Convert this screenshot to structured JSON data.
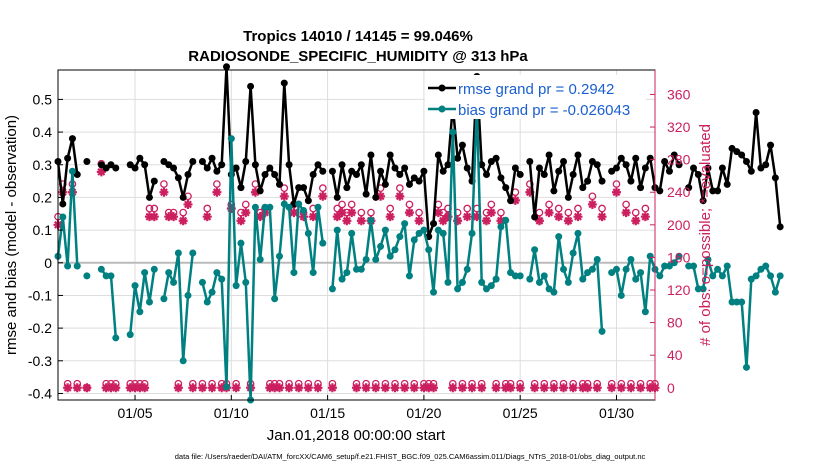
{
  "chart_data": {
    "type": "line",
    "title_line1": "Tropics 14010 / 14145 = 99.046%",
    "title_line2": "RADIOSONDE_SPECIFIC_HUMIDITY @ 313 hPa",
    "xlabel": "Jan.01,2018 00:00:00 start",
    "ylabel_left": "rmse and bias (model - observation)",
    "ylabel_right": "# of obs: o=possible; *=evaluated",
    "footnote": "data file: /Users/raeder/DAI/ATM_forcXX/CAM6_setup/f.e21.FHIST_BGC.f09_025.CAM6assim.011/Diags_NTrS_2018-01/obs_diag_output.nc",
    "xlim": [
      1.0,
      32.0
    ],
    "ylim_left": [
      -0.42,
      0.59
    ],
    "ylim_right": [
      -15,
      390
    ],
    "x_ticks": [
      {
        "value": 5,
        "label": "01/05"
      },
      {
        "value": 10,
        "label": "01/10"
      },
      {
        "value": 15,
        "label": "01/15"
      },
      {
        "value": 20,
        "label": "01/20"
      },
      {
        "value": 25,
        "label": "01/25"
      },
      {
        "value": 30,
        "label": "01/30"
      }
    ],
    "y_left_ticks": [
      {
        "value": 0.5,
        "label": "0.5"
      },
      {
        "value": 0.4,
        "label": "0.4"
      },
      {
        "value": 0.3,
        "label": "0.3"
      },
      {
        "value": 0.2,
        "label": "0.2"
      },
      {
        "value": 0.1,
        "label": "0.1"
      },
      {
        "value": 0,
        "label": "0"
      },
      {
        "value": -0.1,
        "label": "-0.1"
      },
      {
        "value": -0.2,
        "label": "-0.2"
      },
      {
        "value": -0.3,
        "label": "-0.3"
      },
      {
        "value": -0.4,
        "label": "-0.4"
      }
    ],
    "y_right_ticks": [
      {
        "value": 360,
        "label": "360"
      },
      {
        "value": 320,
        "label": "320"
      },
      {
        "value": 280,
        "label": "280"
      },
      {
        "value": 240,
        "label": "240"
      },
      {
        "value": 200,
        "label": "200"
      },
      {
        "value": 160,
        "label": "160"
      },
      {
        "value": 120,
        "label": "120"
      },
      {
        "value": 80,
        "label": "80"
      },
      {
        "value": 40,
        "label": "40"
      },
      {
        "value": 0,
        "label": "0"
      }
    ],
    "legend_position": "top-right",
    "x_step_days": 0.25,
    "x_start": 1.0,
    "series": [
      {
        "name": "rmse",
        "legend": "rmse grand pr = 0.2942",
        "color": "#000000",
        "axis": "left",
        "values": [
          0.31,
          0.18,
          0.32,
          0.38,
          0.27,
          null,
          0.31,
          null,
          null,
          0.3,
          0.29,
          0.3,
          0.29,
          null,
          null,
          0.3,
          0.29,
          0.32,
          0.3,
          0.2,
          0.25,
          null,
          0.31,
          0.3,
          0.29,
          0.26,
          0.2,
          0.27,
          0.31,
          null,
          0.31,
          0.29,
          0.32,
          0.28,
          0.3,
          0.6,
          0.27,
          0.29,
          0.23,
          0.31,
          0.54,
          0.3,
          0.22,
          0.27,
          0.29,
          0.27,
          0.24,
          0.55,
          0.3,
          0.18,
          0.23,
          0.23,
          0.19,
          0.27,
          0.3,
          0.28,
          null,
          0.28,
          0.2,
          0.3,
          0.23,
          0.28,
          0.27,
          0.3,
          0.21,
          0.33,
          0.2,
          0.28,
          0.24,
          0.33,
          0.29,
          0.27,
          0.29,
          0.24,
          0.26,
          0.25,
          0.28,
          0.08,
          0.12,
          0.33,
          0.28,
          0.3,
          0.48,
          0.32,
          0.36,
          0.29,
          0.25,
          0.57,
          0.3,
          0.27,
          0.31,
          0.32,
          0.26,
          0.23,
          0.19,
          0.29,
          0.27,
          null,
          0.31,
          0.14,
          0.29,
          0.27,
          0.33,
          0.22,
          0.28,
          0.31,
          0.2,
          0.27,
          0.33,
          0.23,
          0.25,
          0.31,
          0.3,
          0.25,
          null,
          0.28,
          0.29,
          0.32,
          0.3,
          0.25,
          0.32,
          0.23,
          0.29,
          0.32,
          0.23,
          0.22,
          0.31,
          0.28,
          0.33,
          0.3,
          null,
          0.23,
          0.29,
          0.27,
          0.19,
          0.29,
          0.22,
          0.22,
          0.29,
          0.24,
          0.35,
          0.34,
          0.33,
          0.31,
          0.28,
          0.46,
          0.29,
          0.3,
          0.36,
          0.26,
          0.11
        ]
      },
      {
        "name": "bias",
        "legend": "bias grand pr = -0.026043",
        "color": "#008080",
        "axis": "left",
        "values": [
          0.02,
          0.14,
          -0.01,
          0.28,
          -0.01,
          null,
          -0.04,
          null,
          null,
          -0.02,
          -0.04,
          -0.04,
          -0.23,
          null,
          null,
          -0.22,
          -0.07,
          -0.15,
          -0.03,
          -0.12,
          -0.02,
          null,
          -0.11,
          -0.03,
          -0.06,
          0.03,
          -0.3,
          -0.1,
          0.03,
          null,
          -0.06,
          -0.12,
          -0.09,
          -0.03,
          -0.05,
          -0.38,
          0.38,
          -0.07,
          0.06,
          -0.06,
          -0.42,
          0.17,
          0.01,
          0.17,
          0.17,
          -0.11,
          0.02,
          0.18,
          0.17,
          -0.03,
          0.18,
          0.16,
          0.09,
          -0.03,
          0.17,
          0.06,
          null,
          -0.08,
          0.1,
          -0.05,
          -0.03,
          0.09,
          -0.02,
          -0.02,
          0.01,
          0.13,
          0.01,
          0.05,
          0.1,
          0.02,
          0.04,
          0.08,
          0.12,
          -0.04,
          0.07,
          0.09,
          0.1,
          0.04,
          -0.09,
          0.1,
          0.09,
          -0.06,
          0.4,
          -0.08,
          -0.06,
          -0.02,
          0.09,
          0.48,
          -0.06,
          -0.08,
          -0.07,
          -0.05,
          0.11,
          0.13,
          -0.03,
          -0.04,
          -0.04,
          null,
          -0.05,
          0.04,
          -0.06,
          -0.04,
          -0.08,
          -0.09,
          0.08,
          -0.02,
          -0.06,
          0.03,
          0.09,
          -0.05,
          -0.03,
          -0.02,
          0.01,
          -0.21,
          null,
          -0.03,
          -0.02,
          -0.1,
          -0.02,
          0.01,
          -0.05,
          -0.03,
          -0.15,
          0.02,
          -0.02,
          -0.04,
          -0.01,
          -0.01,
          0.0,
          0.02,
          null,
          -0.01,
          -0.01,
          -0.08,
          -0.08,
          0.01,
          -0.04,
          -0.02,
          -0.04,
          -0.01,
          -0.12,
          -0.12,
          -0.12,
          -0.32,
          -0.05,
          -0.04,
          -0.02,
          -0.01,
          -0.04,
          -0.09,
          -0.04
        ]
      },
      {
        "name": "possible",
        "color": "#cc1f5f",
        "axis": "right",
        "marker": "circle",
        "values": [
          210,
          250,
          5,
          250,
          5,
          null,
          0,
          null,
          null,
          275,
          5,
          5,
          5,
          null,
          null,
          5,
          5,
          5,
          5,
          220,
          220,
          null,
          250,
          215,
          215,
          5,
          215,
          235,
          5,
          null,
          5,
          220,
          5,
          250,
          5,
          5,
          225,
          5,
          215,
          225,
          5,
          250,
          215,
          220,
          5,
          5,
          5,
          245,
          5,
          225,
          5,
          215,
          5,
          220,
          5,
          245,
          null,
          5,
          220,
          225,
          215,
          225,
          5,
          215,
          5,
          215,
          5,
          245,
          5,
          220,
          5,
          245,
          5,
          225,
          5,
          215,
          5,
          5,
          5,
          225,
          215,
          220,
          5,
          215,
          5,
          220,
          5,
          220,
          5,
          215,
          225,
          5,
          215,
          5,
          5,
          240,
          5,
          null,
          250,
          5,
          215,
          5,
          225,
          5,
          220,
          5,
          215,
          5,
          220,
          5,
          5,
          235,
          5,
          220,
          null,
          5,
          250,
          5,
          225,
          5,
          215,
          5,
          220,
          5,
          5,
          220,
          5,
          215,
          5,
          245,
          null,
          5,
          245,
          215,
          215,
          5,
          225,
          5,
          220,
          5,
          5,
          5,
          5,
          5,
          5,
          5,
          5,
          5,
          5,
          5
        ]
      },
      {
        "name": "evaluated",
        "color": "#cc1f5f",
        "axis": "right",
        "marker": "star",
        "values": [
          200,
          240,
          0,
          240,
          0,
          null,
          0,
          null,
          null,
          265,
          0,
          0,
          0,
          null,
          null,
          0,
          0,
          0,
          0,
          210,
          210,
          null,
          240,
          210,
          210,
          0,
          205,
          225,
          0,
          null,
          0,
          210,
          0,
          240,
          0,
          0,
          220,
          0,
          205,
          215,
          0,
          240,
          210,
          215,
          0,
          0,
          0,
          235,
          0,
          215,
          0,
          210,
          0,
          210,
          0,
          235,
          null,
          0,
          210,
          215,
          205,
          215,
          0,
          205,
          0,
          205,
          0,
          235,
          0,
          210,
          0,
          235,
          0,
          215,
          0,
          205,
          0,
          0,
          0,
          215,
          205,
          210,
          0,
          205,
          0,
          210,
          0,
          210,
          0,
          205,
          215,
          0,
          205,
          0,
          0,
          230,
          0,
          null,
          240,
          0,
          205,
          0,
          215,
          0,
          210,
          0,
          205,
          0,
          210,
          0,
          0,
          225,
          0,
          210,
          null,
          0,
          240,
          0,
          215,
          0,
          205,
          0,
          210,
          0,
          0,
          210,
          0,
          205,
          0,
          235,
          null,
          0,
          235,
          205,
          205,
          0,
          215,
          0,
          210,
          0,
          0,
          0,
          0,
          0,
          0,
          0,
          0,
          0,
          0,
          0
        ]
      }
    ]
  }
}
